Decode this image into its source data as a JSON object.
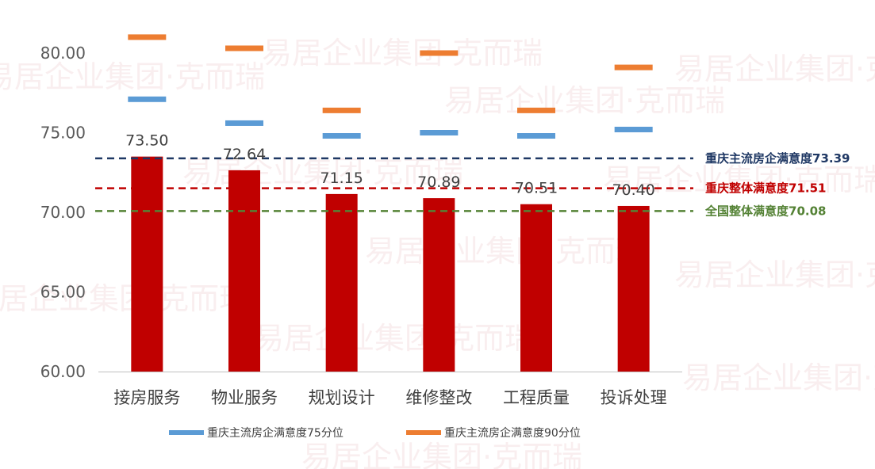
{
  "chart_data": {
    "type": "bar",
    "title": "",
    "xlabel": "",
    "ylabel": "",
    "ylim": [
      60,
      82
    ],
    "yticks": [
      "60.00",
      "65.00",
      "70.00",
      "75.00",
      "80.00"
    ],
    "categories": [
      "接房服务",
      "物业服务",
      "规划设计",
      "维修整改",
      "工程质量",
      "投诉处理"
    ],
    "bar_color": "#c00000",
    "series": [
      {
        "values": [
          73.5,
          72.64,
          71.15,
          70.89,
          70.51,
          70.4
        ],
        "labels": [
          "73.50",
          "72.64",
          "71.15",
          "70.89",
          "70.51",
          "70.40"
        ]
      },
      {
        "name": "重庆主流房企满意度75分位",
        "type": "marker",
        "color": "#5b9bd5",
        "values": [
          77.1,
          75.6,
          74.8,
          75.0,
          74.8,
          75.2
        ]
      },
      {
        "name": "重庆主流房企满意度90分位",
        "type": "marker",
        "color": "#ed7d31",
        "values": [
          81.0,
          80.3,
          76.4,
          80.0,
          76.4,
          79.1
        ]
      }
    ],
    "reference_lines": [
      {
        "label": "重庆主流房企满意度73.39",
        "value": 73.39,
        "color": "#1f3864"
      },
      {
        "label": "重庆整体满意度71.51",
        "value": 71.51,
        "color": "#c00000"
      },
      {
        "label": "全国整体满意度70.08",
        "value": 70.08,
        "color": "#548235"
      }
    ],
    "legend_position": "bottom",
    "grid": false
  },
  "watermark": {
    "text": "易居企业集团·克而瑞"
  }
}
